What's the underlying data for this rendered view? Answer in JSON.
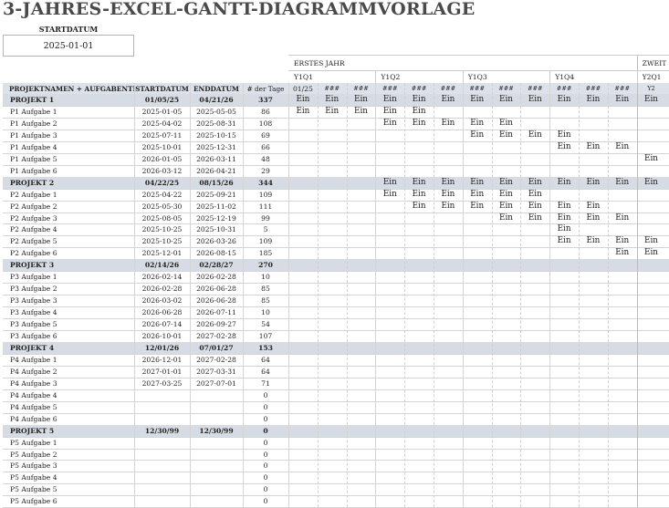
{
  "title": "3-JAHRES-EXCEL-GANTT-DIAGRAMMVORLAGE",
  "start_date": {
    "label": "STARTDATUM",
    "value": "2025-01-01"
  },
  "year_labels": [
    "ERSTES JAHR",
    "ZWEIT"
  ],
  "quarters": [
    "Y1Q1",
    "Y1Q2",
    "Y1Q3",
    "Y1Q4",
    "Y2Q1"
  ],
  "month_headers": [
    "01/25",
    "###",
    "###",
    "###",
    "###",
    "###",
    "###",
    "###",
    "###",
    "###",
    "###",
    "###",
    "Y2"
  ],
  "columns": {
    "name": "PROJEKTNAMEN + AUFGABENTITEL",
    "start": "STARTDATUM",
    "end": "ENDDATUM",
    "days": "# der Tage"
  },
  "bar_text": "Ein",
  "rows": [
    {
      "type": "project",
      "name": "PROJEKT 1",
      "start": "01/05/25",
      "end": "04/21/26",
      "days": "337",
      "bars": [
        0,
        1,
        2,
        3,
        4,
        5,
        6,
        7,
        8,
        9,
        10,
        11,
        12
      ]
    },
    {
      "type": "task",
      "name": "P1 Aufgabe 1",
      "start": "2025-01-05",
      "end": "2025-05-05",
      "days": "86",
      "bars": [
        0,
        1,
        2,
        3,
        4
      ]
    },
    {
      "type": "task",
      "name": "P1 Aufgabe 2",
      "start": "2025-04-02",
      "end": "2025-08-31",
      "days": "108",
      "bars": [
        3,
        4,
        5,
        6,
        7
      ]
    },
    {
      "type": "task",
      "name": "P1 Aufgabe 3",
      "start": "2025-07-11",
      "end": "2025-10-15",
      "days": "69",
      "bars": [
        6,
        7,
        8,
        9
      ]
    },
    {
      "type": "task",
      "name": "P1 Aufgabe 4",
      "start": "2025-10-01",
      "end": "2025-12-31",
      "days": "66",
      "bars": [
        9,
        10,
        11
      ]
    },
    {
      "type": "task",
      "name": "P1 Aufgabe 5",
      "start": "2026-01-05",
      "end": "2026-03-11",
      "days": "48",
      "bars": [
        12
      ]
    },
    {
      "type": "task",
      "name": "P1 Aufgabe 6",
      "start": "2026-03-12",
      "end": "2026-04-21",
      "days": "29",
      "bars": []
    },
    {
      "type": "project",
      "name": "PROJEKT 2",
      "start": "04/22/25",
      "end": "08/15/26",
      "days": "344",
      "bars": [
        3,
        4,
        5,
        6,
        7,
        8,
        9,
        10,
        11,
        12
      ]
    },
    {
      "type": "task",
      "name": "P2 Aufgabe 1",
      "start": "2025-04-22",
      "end": "2025-09-21",
      "days": "109",
      "bars": [
        3,
        4,
        5,
        6,
        7,
        8
      ]
    },
    {
      "type": "task",
      "name": "P2 Aufgabe 2",
      "start": "2025-05-30",
      "end": "2025-11-02",
      "days": "111",
      "bars": [
        4,
        5,
        6,
        7,
        8,
        9,
        10
      ]
    },
    {
      "type": "task",
      "name": "P2 Aufgabe 3",
      "start": "2025-08-05",
      "end": "2025-12-19",
      "days": "99",
      "bars": [
        7,
        8,
        9,
        10,
        11
      ]
    },
    {
      "type": "task",
      "name": "P2 Aufgabe 4",
      "start": "2025-10-25",
      "end": "2025-10-31",
      "days": "5",
      "bars": [
        9
      ]
    },
    {
      "type": "task",
      "name": "P2 Aufgabe 5",
      "start": "2025-10-25",
      "end": "2026-03-26",
      "days": "109",
      "bars": [
        9,
        10,
        11,
        12
      ]
    },
    {
      "type": "task",
      "name": "P2 Aufgabe 6",
      "start": "2025-12-01",
      "end": "2026-08-15",
      "days": "185",
      "bars": [
        11,
        12
      ]
    },
    {
      "type": "project",
      "name": "PROJEKT 3",
      "start": "02/14/26",
      "end": "02/28/27",
      "days": "270",
      "bars": []
    },
    {
      "type": "task",
      "name": "P3 Aufgabe 1",
      "start": "2026-02-14",
      "end": "2026-02-28",
      "days": "10",
      "bars": []
    },
    {
      "type": "task",
      "name": "P3 Aufgabe 2",
      "start": "2026-02-28",
      "end": "2026-06-28",
      "days": "85",
      "bars": []
    },
    {
      "type": "task",
      "name": "P3 Aufgabe 3",
      "start": "2026-03-02",
      "end": "2026-06-28",
      "days": "85",
      "bars": []
    },
    {
      "type": "task",
      "name": "P3 Aufgabe 4",
      "start": "2026-06-28",
      "end": "2026-07-11",
      "days": "10",
      "bars": []
    },
    {
      "type": "task",
      "name": "P3 Aufgabe 5",
      "start": "2026-07-14",
      "end": "2026-09-27",
      "days": "54",
      "bars": []
    },
    {
      "type": "task",
      "name": "P3 Aufgabe 6",
      "start": "2026-10-01",
      "end": "2027-02-28",
      "days": "107",
      "bars": []
    },
    {
      "type": "project",
      "name": "PROJEKT 4",
      "start": "12/01/26",
      "end": "07/01/27",
      "days": "153",
      "bars": []
    },
    {
      "type": "task",
      "name": "P4 Aufgabe 1",
      "start": "2026-12-01",
      "end": "2027-02-28",
      "days": "64",
      "bars": []
    },
    {
      "type": "task",
      "name": "P4 Aufgabe 2",
      "start": "2027-01-01",
      "end": "2027-03-31",
      "days": "64",
      "bars": []
    },
    {
      "type": "task",
      "name": "P4 Aufgabe 3",
      "start": "2027-03-25",
      "end": "2027-07-01",
      "days": "71",
      "bars": []
    },
    {
      "type": "task",
      "name": "P4 Aufgabe 4",
      "start": "",
      "end": "",
      "days": "0",
      "bars": []
    },
    {
      "type": "task",
      "name": "P4 Aufgabe 5",
      "start": "",
      "end": "",
      "days": "0",
      "bars": []
    },
    {
      "type": "task",
      "name": "P4 Aufgabe 6",
      "start": "",
      "end": "",
      "days": "0",
      "bars": []
    },
    {
      "type": "project",
      "name": "PROJEKT 5",
      "start": "12/30/99",
      "end": "12/30/99",
      "days": "0",
      "bars": []
    },
    {
      "type": "task",
      "name": "P5 Aufgabe 1",
      "start": "",
      "end": "",
      "days": "0",
      "bars": []
    },
    {
      "type": "task",
      "name": "P5 Aufgabe 2",
      "start": "",
      "end": "",
      "days": "0",
      "bars": []
    },
    {
      "type": "task",
      "name": "P5 Aufgabe 3",
      "start": "",
      "end": "",
      "days": "0",
      "bars": []
    },
    {
      "type": "task",
      "name": "P5 Aufgabe 4",
      "start": "",
      "end": "",
      "days": "0",
      "bars": []
    },
    {
      "type": "task",
      "name": "P5 Aufgabe 5",
      "start": "",
      "end": "",
      "days": "0",
      "bars": []
    },
    {
      "type": "task",
      "name": "P5 Aufgabe 6",
      "start": "",
      "end": "",
      "days": "0",
      "bars": []
    }
  ]
}
